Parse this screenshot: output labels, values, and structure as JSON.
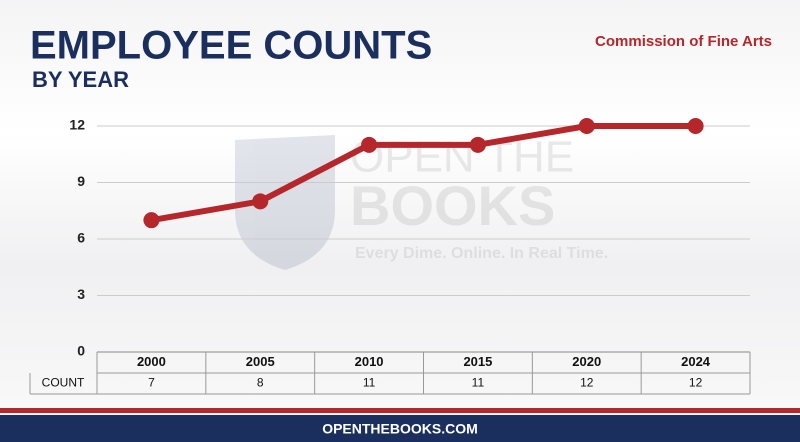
{
  "chart_data": {
    "type": "line",
    "title": "EMPLOYEE COUNTS",
    "subtitle": "BY YEAR",
    "annotation": "Commission of Fine Arts",
    "categories": [
      "2000",
      "2005",
      "2010",
      "2015",
      "2020",
      "2024"
    ],
    "series": [
      {
        "name": "COUNT",
        "color": "#b5272b",
        "values": [
          7,
          8,
          11,
          11,
          12,
          12
        ]
      }
    ],
    "ylim": [
      0,
      12
    ],
    "yticks": [
      0,
      3,
      6,
      9,
      12
    ],
    "grid": true
  },
  "watermark": {
    "line1": "OPEN THE",
    "line2": "BOOKS",
    "tagline": "Every Dime. Online. In Real Time."
  },
  "footer": "OPENTHEBOOKS.COM"
}
